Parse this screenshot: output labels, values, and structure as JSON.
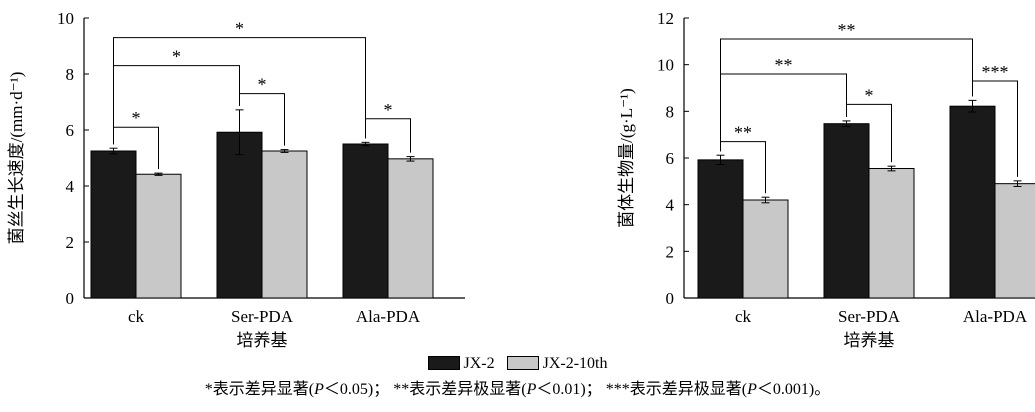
{
  "colors": {
    "JX-2": "#1a1a1a",
    "JX-2-10th": "#c8c8c8"
  },
  "chart_data": [
    {
      "type": "bar",
      "ylabel": "菌丝生长速度/(mm·d⁻¹)",
      "xlabel": "培养基",
      "categories": [
        "ck",
        "Ser-PDA",
        "Ala-PDA"
      ],
      "ylim": [
        0,
        10
      ],
      "yticks": [
        0,
        2,
        4,
        6,
        8,
        10
      ],
      "series": [
        {
          "name": "JX-2",
          "values": [
            5.25,
            5.92,
            5.5
          ],
          "errors": [
            0.1,
            0.8,
            0.06
          ]
        },
        {
          "name": "JX-2-10th",
          "values": [
            4.42,
            5.25,
            4.97
          ],
          "errors": [
            0.04,
            0.05,
            0.08
          ]
        }
      ],
      "brackets": [
        {
          "from": [
            0,
            0
          ],
          "to": [
            0,
            1
          ],
          "y": 6.1,
          "label": "*"
        },
        {
          "from": [
            1,
            0
          ],
          "to": [
            1,
            1
          ],
          "y": 7.3,
          "label": "*"
        },
        {
          "from": [
            2,
            0
          ],
          "to": [
            2,
            1
          ],
          "y": 6.4,
          "label": "*"
        },
        {
          "from": [
            0,
            0
          ],
          "to": [
            1,
            0
          ],
          "y": 8.3,
          "label": "*"
        },
        {
          "from": [
            0,
            0
          ],
          "to": [
            2,
            0
          ],
          "y": 9.3,
          "label": "*"
        }
      ]
    },
    {
      "type": "bar",
      "ylabel": "菌体生物量/(g·L⁻¹)",
      "xlabel": "培养基",
      "categories": [
        "ck",
        "Ser-PDA",
        "Ala-PDA"
      ],
      "ylim": [
        0,
        12
      ],
      "yticks": [
        0,
        2,
        4,
        6,
        8,
        10,
        12
      ],
      "series": [
        {
          "name": "JX-2",
          "values": [
            5.92,
            7.47,
            8.22
          ],
          "errors": [
            0.2,
            0.12,
            0.25
          ]
        },
        {
          "name": "JX-2-10th",
          "values": [
            4.2,
            5.55,
            4.9
          ],
          "errors": [
            0.12,
            0.1,
            0.12
          ]
        }
      ],
      "brackets": [
        {
          "from": [
            0,
            0
          ],
          "to": [
            0,
            1
          ],
          "y": 6.7,
          "label": "**"
        },
        {
          "from": [
            1,
            0
          ],
          "to": [
            1,
            1
          ],
          "y": 8.3,
          "label": "*"
        },
        {
          "from": [
            2,
            0
          ],
          "to": [
            2,
            1
          ],
          "y": 9.3,
          "label": "***"
        },
        {
          "from": [
            0,
            0
          ],
          "to": [
            1,
            0
          ],
          "y": 9.6,
          "label": "**"
        },
        {
          "from": [
            0,
            0
          ],
          "to": [
            2,
            0
          ],
          "y": 11.1,
          "label": "**"
        }
      ]
    }
  ],
  "legend": {
    "items": [
      "JX-2",
      "JX-2-10th"
    ]
  },
  "footnote": {
    "p1a": "*表示差异显著(",
    "p1p": "P",
    "p1b": "＜0.05)；",
    "p2a": "**表示差异极显著(",
    "p2p": "P",
    "p2b": "＜0.01)；",
    "p3a": "***表示差异极显著(",
    "p3p": "P",
    "p3b": "＜0.001)。"
  }
}
